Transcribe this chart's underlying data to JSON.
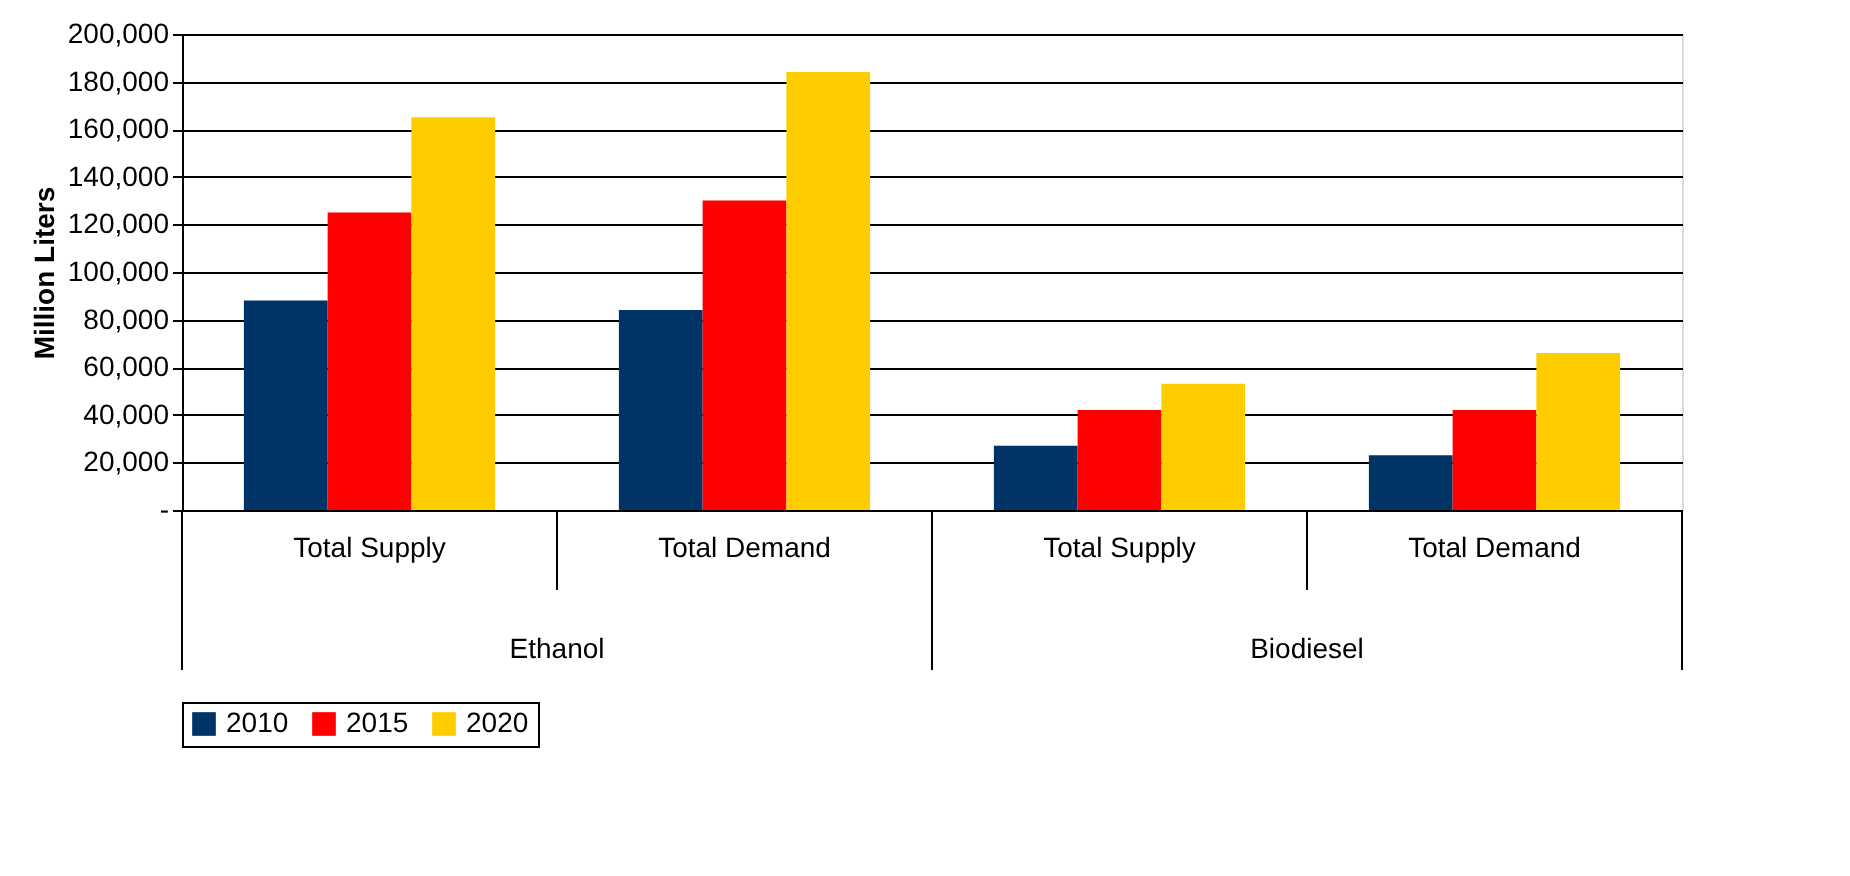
{
  "chart_data": {
    "type": "bar",
    "ylabel": "Million Liters",
    "categories": [
      "Total Supply",
      "Total Demand",
      "Total Supply",
      "Total Demand"
    ],
    "annotations": [
      "Ethanol",
      "Biodiesel"
    ],
    "series": [
      {
        "name": "2010",
        "color": "#003366",
        "values": [
          88000,
          84000,
          27000,
          23000
        ]
      },
      {
        "name": "2015",
        "color": "#ff0000",
        "values": [
          125000,
          130000,
          42000,
          42000
        ]
      },
      {
        "name": "2020",
        "color": "#ffcc00",
        "values": [
          165000,
          184000,
          53000,
          66000
        ]
      }
    ],
    "ylim": [
      0,
      200000
    ],
    "yticks": [
      {
        "value": 0,
        "label": "-"
      },
      {
        "value": 20000,
        "label": "20,000"
      },
      {
        "value": 40000,
        "label": "40,000"
      },
      {
        "value": 60000,
        "label": "60,000"
      },
      {
        "value": 80000,
        "label": "80,000"
      },
      {
        "value": 100000,
        "label": "100,000"
      },
      {
        "value": 120000,
        "label": "120,000"
      },
      {
        "value": 140000,
        "label": "140,000"
      },
      {
        "value": 160000,
        "label": "160,000"
      },
      {
        "value": 180000,
        "label": "180,000"
      },
      {
        "value": 200000,
        "label": "200,000"
      }
    ],
    "grid": "y",
    "legend": "bottom"
  }
}
